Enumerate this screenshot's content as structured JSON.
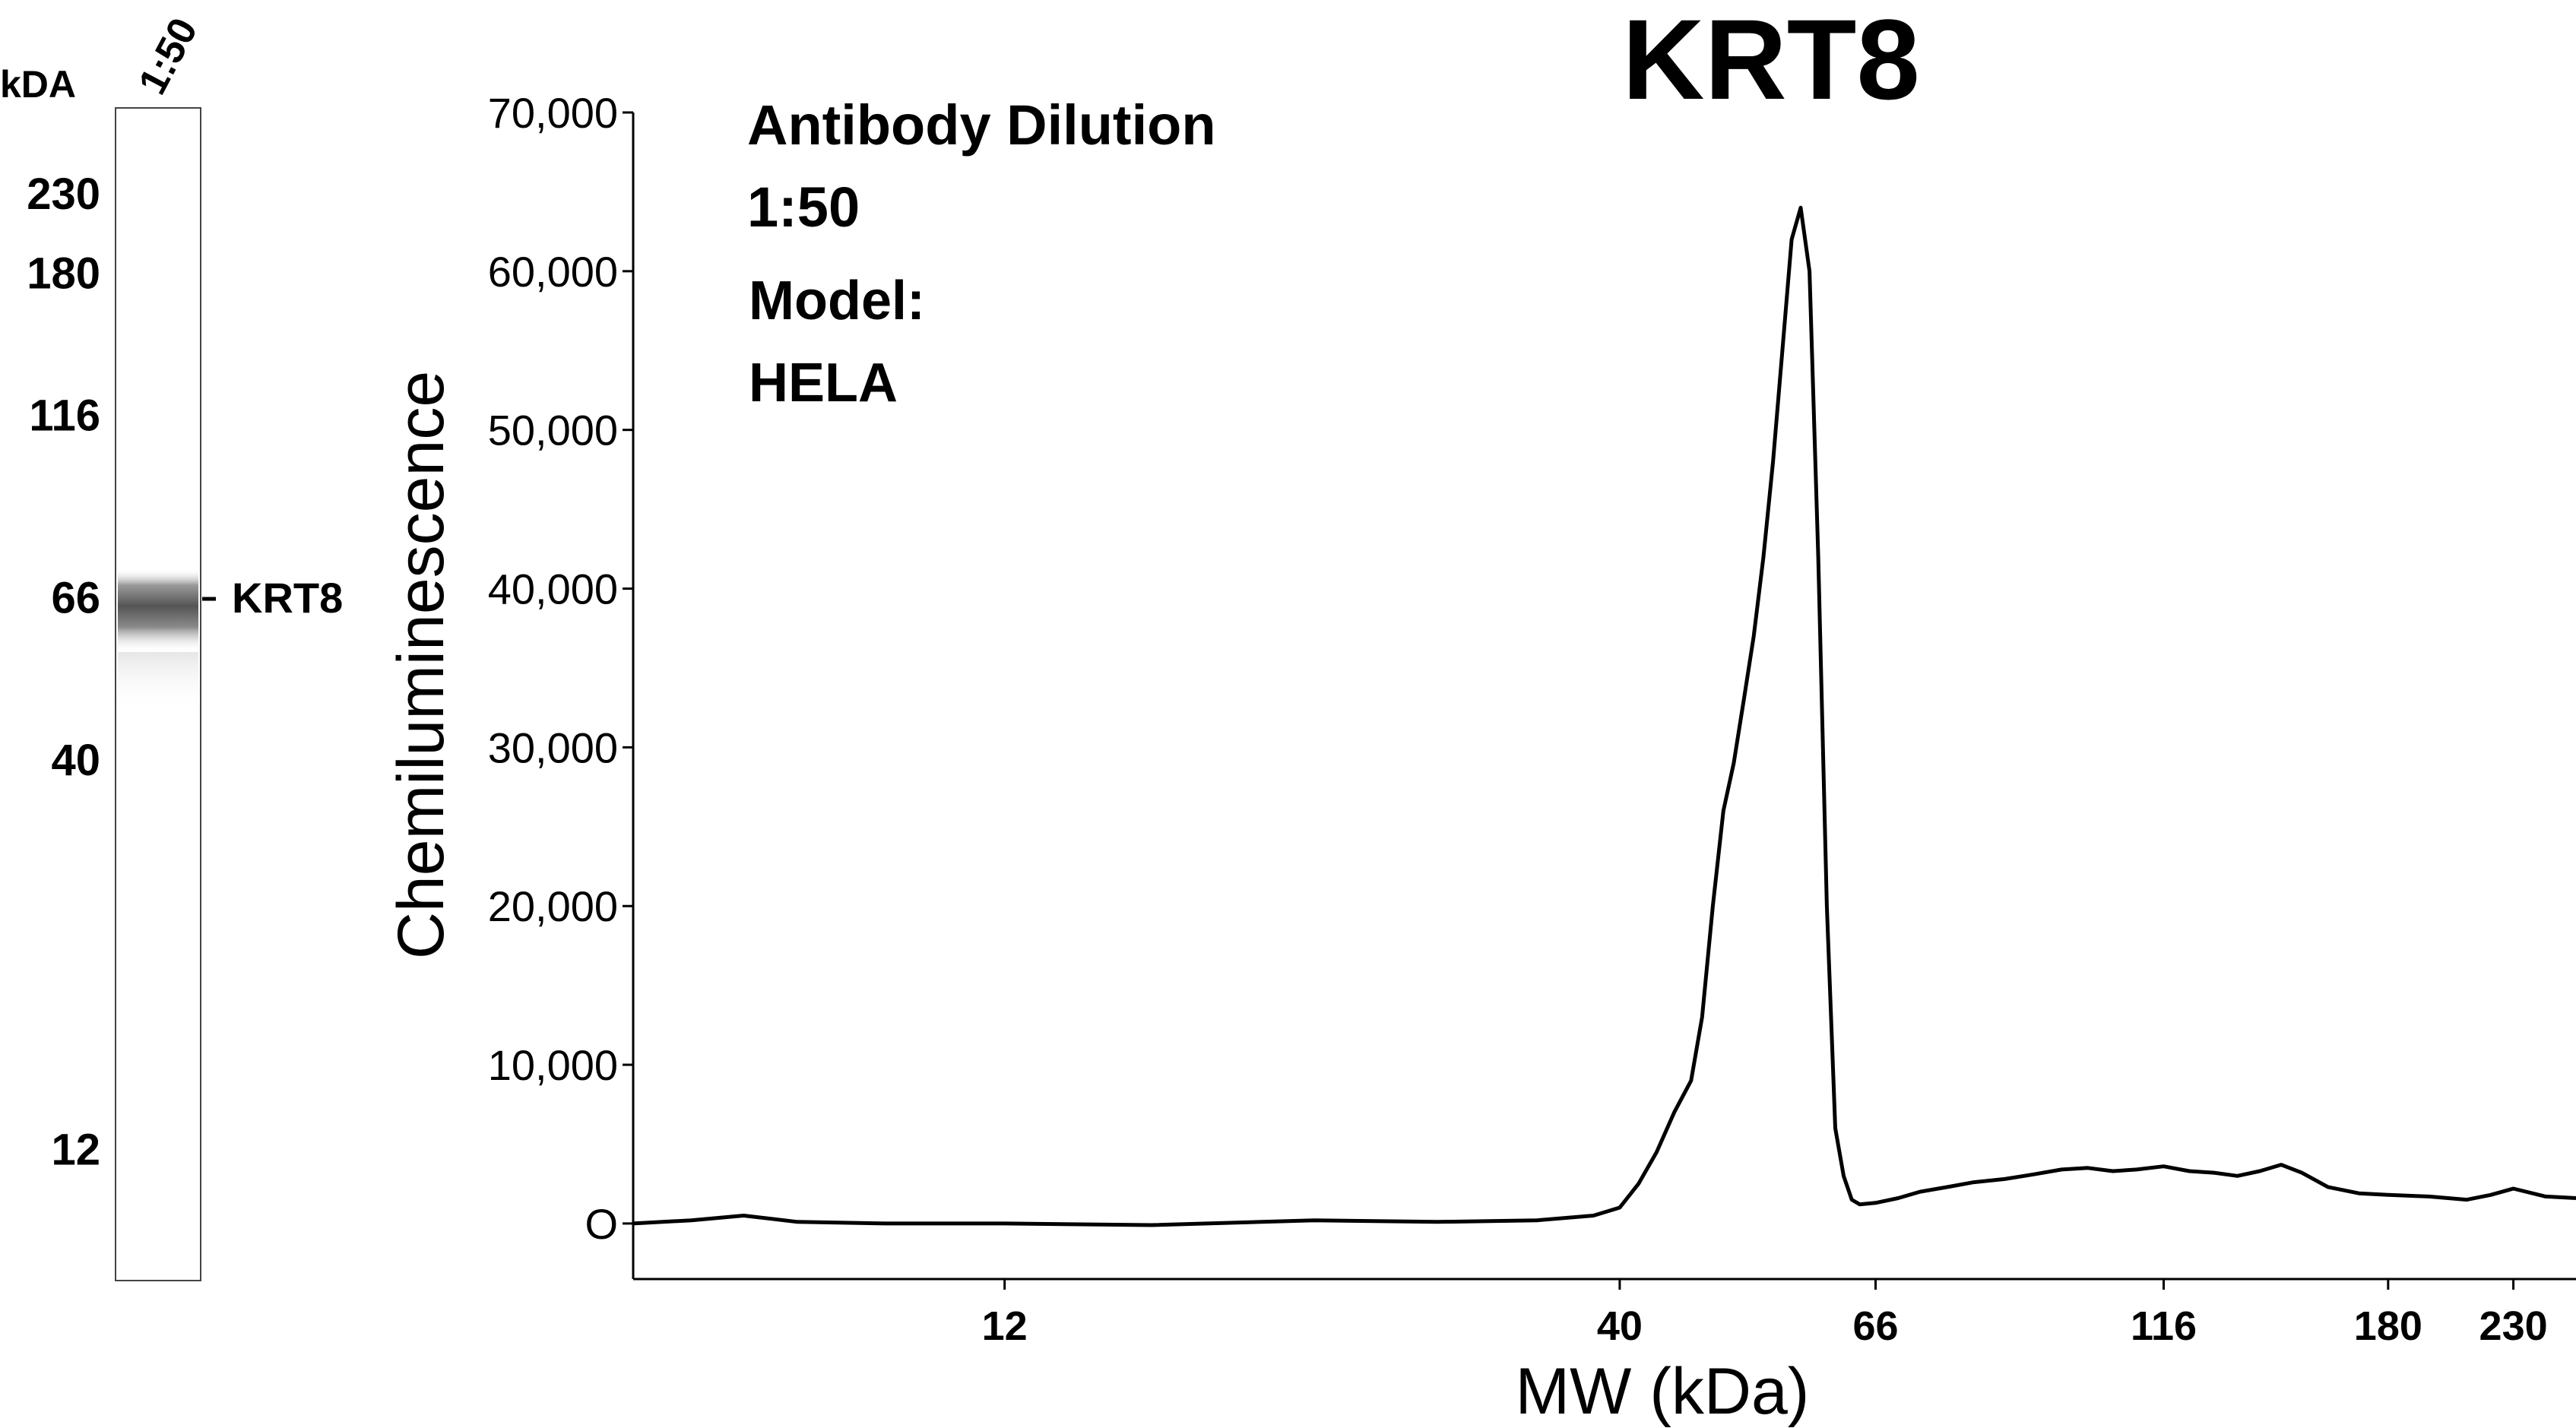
{
  "chart_data": {
    "type": "line",
    "title": "KRT8",
    "xlabel": "MW (kDa)",
    "ylabel": "Chemiluminescence",
    "x_scale": "log",
    "xlim": [
      5.8,
      260
    ],
    "ylim": [
      -3500,
      70000
    ],
    "x_ticks": [
      12,
      40,
      66,
      116,
      180,
      230
    ],
    "x_tick_labels": [
      "12",
      "40",
      "66",
      "116",
      "180",
      "230"
    ],
    "y_ticks": [
      0,
      10000,
      20000,
      30000,
      40000,
      50000,
      60000,
      70000
    ],
    "y_tick_labels": [
      "O",
      "10,000",
      "20,000",
      "30,000",
      "40,000",
      "50,000",
      "60,000",
      "70,000"
    ],
    "grid": false,
    "annotations": [
      "Antibody Dilution",
      "1:50",
      "Model:",
      "HELA"
    ],
    "series": [
      {
        "x": [
          5.8,
          6.5,
          7.2,
          8.0,
          9.5,
          12,
          16,
          22,
          28,
          34,
          38,
          40,
          41.5,
          43,
          44.5,
          46,
          47,
          48,
          49,
          50,
          51,
          52,
          53,
          54,
          55,
          56,
          57,
          58,
          59,
          60,
          61,
          62,
          63,
          64,
          66,
          69,
          72,
          76,
          80,
          85,
          90,
          95,
          100,
          105,
          110,
          116,
          122,
          128,
          134,
          140,
          146,
          152,
          160,
          170,
          180,
          195,
          210,
          220,
          230,
          245,
          260
        ],
        "y": [
          0,
          200,
          500,
          100,
          0,
          0,
          -100,
          200,
          100,
          200,
          500,
          1000,
          2500,
          4500,
          7000,
          9000,
          13000,
          20000,
          26000,
          29000,
          33000,
          37000,
          42000,
          48000,
          55000,
          62000,
          64000,
          60000,
          42000,
          20000,
          6000,
          3000,
          1500,
          1200,
          1300,
          1600,
          2000,
          2300,
          2600,
          2800,
          3100,
          3400,
          3500,
          3300,
          3400,
          3600,
          3300,
          3200,
          3000,
          3300,
          3700,
          3200,
          2300,
          1900,
          1800,
          1700,
          1500,
          1800,
          2200,
          1700,
          1600
        ]
      }
    ]
  },
  "blot": {
    "header_kda": "kDA",
    "lane_label": "1:50",
    "band_label": "KRT8",
    "markers": [
      {
        "label": "230",
        "kda": 230
      },
      {
        "label": "180",
        "kda": 180
      },
      {
        "label": "116",
        "kda": 116
      },
      {
        "label": "66",
        "kda": 66
      },
      {
        "label": "40",
        "kda": 40
      },
      {
        "label": "12",
        "kda": 12
      }
    ]
  }
}
